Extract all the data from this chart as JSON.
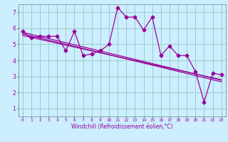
{
  "x_data": [
    0,
    1,
    2,
    3,
    4,
    5,
    6,
    7,
    8,
    9,
    10,
    11,
    12,
    13,
    14,
    15,
    16,
    17,
    18,
    19,
    20,
    21,
    22,
    23
  ],
  "y_main": [
    5.8,
    5.4,
    5.5,
    5.5,
    5.5,
    4.6,
    5.8,
    4.3,
    4.4,
    4.6,
    5.0,
    7.3,
    6.7,
    6.7,
    5.9,
    6.7,
    4.3,
    4.9,
    4.3,
    4.3,
    3.3,
    1.4,
    3.2,
    3.1
  ],
  "y_trend1": [
    5.75,
    5.62,
    5.49,
    5.36,
    5.23,
    5.1,
    4.97,
    4.84,
    4.71,
    4.58,
    4.45,
    4.32,
    4.19,
    4.06,
    3.93,
    3.8,
    3.67,
    3.54,
    3.41,
    3.28,
    3.15,
    3.02,
    2.89,
    2.76
  ],
  "y_trend2": [
    5.65,
    5.52,
    5.39,
    5.26,
    5.13,
    5.0,
    4.87,
    4.74,
    4.61,
    4.48,
    4.35,
    4.22,
    4.09,
    3.96,
    3.83,
    3.7,
    3.57,
    3.44,
    3.31,
    3.18,
    3.05,
    2.92,
    2.79,
    2.66
  ],
  "y_trend3": [
    5.55,
    5.43,
    5.31,
    5.19,
    5.07,
    4.95,
    4.83,
    4.71,
    4.59,
    4.47,
    4.35,
    4.23,
    4.11,
    3.99,
    3.87,
    3.75,
    3.63,
    3.51,
    3.39,
    3.27,
    3.15,
    3.03,
    2.91,
    2.79
  ],
  "line_color": "#990099",
  "bg_color": "#cceeff",
  "grid_color": "#99cccc",
  "xlabel": "Windchill (Refroidissement éolien,°C)",
  "xlim": [
    -0.5,
    23.5
  ],
  "ylim": [
    0.5,
    7.5
  ],
  "xticks": [
    0,
    1,
    2,
    3,
    4,
    5,
    6,
    7,
    8,
    9,
    10,
    11,
    12,
    13,
    14,
    15,
    16,
    17,
    18,
    19,
    20,
    21,
    22,
    23
  ],
  "yticks": [
    1,
    2,
    3,
    4,
    5,
    6,
    7
  ],
  "marker": "D",
  "markersize": 2.5,
  "linewidth": 0.9
}
